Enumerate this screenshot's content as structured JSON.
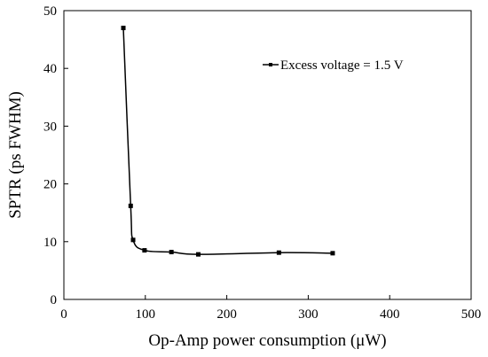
{
  "chart_data": {
    "type": "line",
    "xlabel": "Op-Amp power consumption (μW)",
    "ylabel": "SPTR (ps FWHM)",
    "xlim": [
      0,
      500
    ],
    "ylim": [
      0,
      50
    ],
    "xticks": [
      0,
      100,
      200,
      300,
      400,
      500
    ],
    "yticks": [
      0,
      10,
      20,
      30,
      40,
      50
    ],
    "grid": false,
    "legend": "top-right",
    "series": [
      {
        "name": "Excess voltage = 1.5 V",
        "color": "#000000",
        "marker": "square",
        "smooth": true,
        "x": [
          73,
          82,
          85,
          99,
          132,
          165,
          264,
          330
        ],
        "y": [
          47,
          16.2,
          10.3,
          8.5,
          8.2,
          7.8,
          8.1,
          8.0
        ]
      }
    ]
  }
}
